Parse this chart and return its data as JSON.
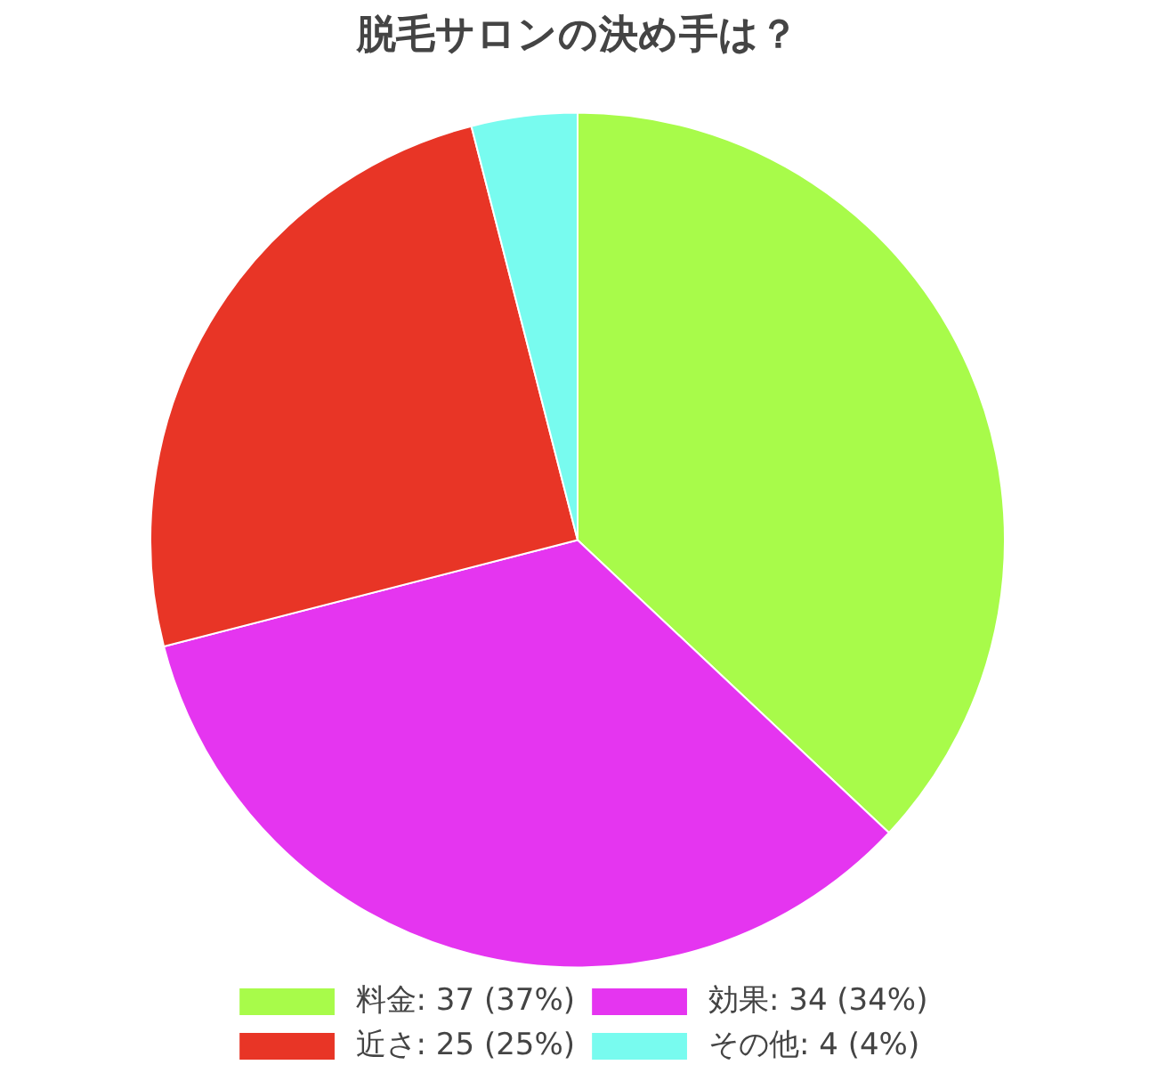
{
  "chart_data": {
    "type": "pie",
    "title": "脱毛サロンの決め手は？",
    "categories": [
      "料金: 37 (37%)",
      "効果: 34 (34%)",
      "近さ: 25 (25%)",
      "その他: 4 (4%)"
    ],
    "values": [
      37,
      34,
      25,
      4
    ],
    "colors": [
      "#a8fb4a",
      "#e535f0",
      "#e83526",
      "#78fbef"
    ],
    "legend": "bottom"
  }
}
